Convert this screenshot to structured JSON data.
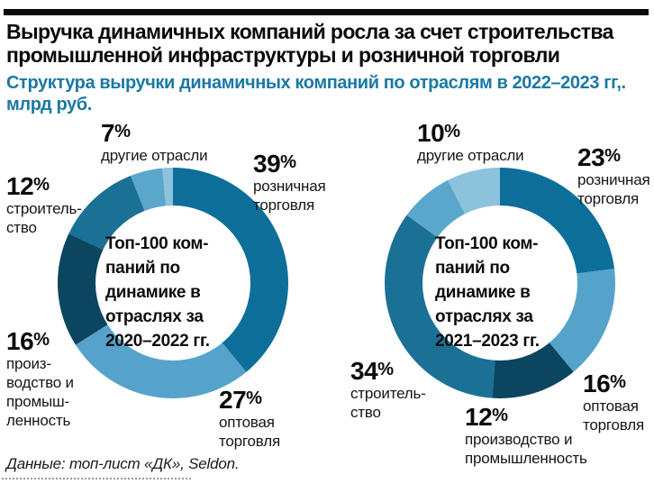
{
  "header": {
    "title": "Выручка динамичных компаний росла за счет строительства промышленной инфраструктуры и розничной торговли",
    "subtitle": "Структура выручки динамичных компаний по отраслям в 2022–2023 гг,. млрд руб."
  },
  "percent_sign": "%",
  "palette": {
    "retail": "#0d6e9a",
    "wholesale": "#55a3cb",
    "manufacturing": "#0c455f",
    "construction": "#1b7195",
    "other": "#5ba7cc",
    "other_tail": "#8dc2dc",
    "subtitle_blue": "#1a79a4",
    "text_black": "#0c0c0c"
  },
  "chart_data": [
    {
      "type": "pie",
      "subtype": "donut",
      "period": "2020–2022",
      "center_label": "Топ-100 компаний по динамике в отраслях за 2020–2022 гг.",
      "center_label_lines": [
        "Топ-100 ком-",
        "паний по",
        "динамике в",
        "отраслях за",
        "2020–2022 гг."
      ],
      "start_angle_deg": 0,
      "direction": "clockwise",
      "slices": [
        {
          "label": "розничная торговля",
          "value": 39,
          "pct": "39",
          "color": "#0d6e9a",
          "display_lines": [
            "розничная",
            "торговля"
          ]
        },
        {
          "label": "оптовая торговля",
          "value": 27,
          "pct": "27",
          "color": "#55a3cb",
          "display_lines": [
            "оптовая",
            "торговля"
          ]
        },
        {
          "label": "производство и промышленность",
          "value": 16,
          "pct": "16",
          "color": "#0c455f",
          "display_lines": [
            "произ-",
            "водство и",
            "промыш-",
            "ленность"
          ]
        },
        {
          "label": "строительство",
          "value": 12,
          "pct": "12",
          "color": "#1b7195",
          "display_lines": [
            "строитель-",
            "ство"
          ]
        },
        {
          "label": "другие отрасли",
          "value": 7,
          "pct": "7",
          "color": "#5ba7cc",
          "tail_pct": 2.5,
          "tail_color": "#8dc2dc",
          "display_lines": [
            "другие отрасли"
          ]
        }
      ]
    },
    {
      "type": "pie",
      "subtype": "donut",
      "period": "2021–2023",
      "center_label": "Топ-100 компаний по динамике в отраслях за 2021–2023 гг.",
      "center_label_lines": [
        "Топ-100 ком-",
        "паний по",
        "динамике в",
        "отраслях за",
        "2021–2023 гг."
      ],
      "start_angle_deg": 0,
      "direction": "clockwise",
      "slices": [
        {
          "label": "розничная торговля",
          "value": 23,
          "pct": "23",
          "color": "#0d6e9a",
          "display_lines": [
            "розничная",
            "торговля"
          ]
        },
        {
          "label": "оптовая торговля",
          "value": 16,
          "pct": "16",
          "color": "#55a3cb",
          "display_lines": [
            "оптовая",
            "торговля"
          ]
        },
        {
          "label": "производство и промышленность",
          "value": 12,
          "pct": "12",
          "color": "#0c455f",
          "display_lines": [
            "производство и",
            "промышленность"
          ]
        },
        {
          "label": "строительство",
          "value": 34,
          "pct": "34",
          "color": "#1b7195",
          "display_lines": [
            "строитель-",
            "ство"
          ]
        },
        {
          "label": "другие отрасли",
          "value": 10,
          "pct": "10",
          "color": "#5ba7cc",
          "tail_pct": 2.5,
          "tail_color": "#8dc2dc",
          "display_lines": [
            "другие отрасли"
          ]
        }
      ]
    }
  ],
  "footer": {
    "source": "Данные: топ-лист «ДК», Seldon."
  }
}
